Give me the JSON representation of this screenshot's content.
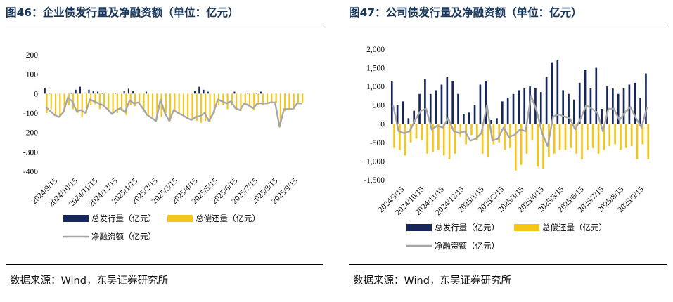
{
  "colors": {
    "issuance": "#17275c",
    "repayment": "#f5c518",
    "net": "#a6a6a6",
    "title": "#17375e"
  },
  "charts": [
    {
      "title": "图46：企业债发行量及净融资额（单位：亿元）",
      "source": "数据来源：Wind，东吴证券研究所",
      "legend": {
        "issuance": "总发行量（亿元）",
        "repayment": "总偿还量（亿元）",
        "net": "净融资额（亿元）"
      }
    },
    {
      "title": "图47：公司债发行量及净融资额（单位：亿元）",
      "source": "数据来源：Wind，东吴证券研究所",
      "legend": {
        "issuance": "总发行量（亿元）",
        "repayment": "总偿还量（亿元）",
        "net": "净融资额（亿元）"
      }
    }
  ],
  "chart_data": [
    {
      "type": "bar",
      "title": "企业债发行量及净融资额（单位：亿元）",
      "ylim": [
        -400,
        200
      ],
      "yticks": [
        200,
        100,
        0,
        -100,
        -200,
        -300,
        -400
      ],
      "ytick_labels": [
        "200",
        "100",
        "0",
        "-100",
        "-200",
        "-300",
        "-400"
      ],
      "xtick_labels": [
        "2024/9/15",
        "2024/10/15",
        "2024/11/15",
        "2024/12/15",
        "2025/1/15",
        "2025/2/15",
        "2025/3/15",
        "2025/4/15",
        "2025/5/15",
        "2025/6/15",
        "2025/7/15",
        "2025/8/15",
        "2025/9/15"
      ],
      "series": [
        {
          "name": "总发行量（亿元）",
          "kind": "bar",
          "values": [
            30,
            5,
            0,
            0,
            0,
            0,
            5,
            20,
            35,
            0,
            20,
            15,
            10,
            5,
            0,
            0,
            5,
            0,
            15,
            25,
            15,
            0,
            0,
            10,
            0,
            0,
            0,
            0,
            0,
            0,
            0,
            0,
            0,
            0,
            15,
            35,
            20,
            10,
            0,
            0,
            0,
            0,
            0,
            10,
            0,
            0,
            5,
            0,
            5,
            10,
            0,
            0,
            0,
            0,
            0,
            0,
            0,
            0,
            0
          ]
        },
        {
          "name": "总偿还量（亿元）",
          "kind": "bar",
          "values": [
            -100,
            -80,
            -110,
            -120,
            -95,
            -60,
            -80,
            -100,
            -120,
            -100,
            -60,
            -55,
            -80,
            -70,
            -85,
            -105,
            -100,
            -90,
            -110,
            -60,
            -65,
            -55,
            -85,
            -110,
            -120,
            -135,
            -120,
            -100,
            -140,
            -95,
            -100,
            -110,
            -120,
            -130,
            -140,
            -150,
            -140,
            -145,
            -100,
            -60,
            -60,
            -80,
            -60,
            -80,
            -90,
            -60,
            -70,
            -85,
            -60,
            -60,
            -55,
            -50,
            -50,
            -170,
            -90,
            -85,
            -80,
            -50,
            -50
          ]
        },
        {
          "name": "净融资额（亿元）",
          "kind": "line",
          "values": [
            -70,
            -90,
            -110,
            -120,
            -95,
            -20,
            -40,
            -90,
            -85,
            -100,
            -30,
            -40,
            -50,
            -60,
            -80,
            -105,
            -85,
            -75,
            -95,
            -35,
            -50,
            -45,
            -75,
            -110,
            -125,
            -140,
            -30,
            -100,
            -140,
            -85,
            -100,
            -110,
            -125,
            -135,
            -120,
            -115,
            -100,
            -140,
            -100,
            -30,
            -40,
            -50,
            -40,
            -75,
            -85,
            -50,
            -60,
            -75,
            -50,
            -50,
            -50,
            -45,
            -45,
            -170,
            -80,
            -80,
            -80,
            -50,
            -50
          ]
        }
      ]
    },
    {
      "type": "bar",
      "title": "公司债发行量及净融资额（单位：亿元）",
      "ylim": [
        -1500,
        2000
      ],
      "yticks": [
        2000,
        1500,
        1000,
        500,
        0,
        -500,
        -1000,
        -1500
      ],
      "ytick_labels": [
        "2,000",
        "1,500",
        "1,000",
        "500",
        "0",
        "-500",
        "-1,000",
        "-1,500"
      ],
      "xtick_labels": [
        "2024/9/15",
        "2024/10/15",
        "2024/11/15",
        "2024/12/15",
        "2025/1/15",
        "2025/2/15",
        "2025/3/15",
        "2025/4/15",
        "2025/5/15",
        "2025/6/15",
        "2025/7/15",
        "2025/8/15",
        "2025/9/15"
      ],
      "series": [
        {
          "name": "总发行量（亿元）",
          "kind": "bar",
          "values": [
            1150,
            500,
            600,
            150,
            350,
            800,
            1200,
            800,
            900,
            1050,
            1250,
            1150,
            800,
            250,
            300,
            500,
            1050,
            1150,
            100,
            150,
            600,
            700,
            800,
            900,
            950,
            1000,
            950,
            850,
            1250,
            1650,
            1700,
            900,
            800,
            650,
            1100,
            1450,
            950,
            1500,
            400,
            1000,
            950,
            800,
            950,
            1050,
            1100,
            700,
            1350
          ]
        },
        {
          "name": "总偿还量（亿元）",
          "kind": "bar",
          "values": [
            -650,
            -700,
            -850,
            -500,
            -400,
            -450,
            -800,
            -750,
            -700,
            -850,
            -950,
            -800,
            -350,
            -550,
            -300,
            -450,
            -800,
            -900,
            -550,
            -500,
            -700,
            -650,
            -1250,
            -1100,
            -800,
            -450,
            -1150,
            -1200,
            -900,
            -800,
            -700,
            -700,
            -650,
            -800,
            -950,
            -700,
            -650,
            -800,
            -700,
            -600,
            -550,
            -700,
            -650,
            -600,
            -950,
            -550,
            -950
          ]
        },
        {
          "name": "净融资额（亿元）",
          "kind": "line",
          "values": [
            500,
            -200,
            -250,
            -200,
            100,
            350,
            400,
            -150,
            -50,
            -100,
            150,
            -200,
            -250,
            -200,
            -450,
            -400,
            -250,
            500,
            -450,
            -400,
            -100,
            -350,
            -300,
            -150,
            -200,
            750,
            350,
            -250,
            -600,
            200,
            250,
            200,
            150,
            -150,
            150,
            500,
            400,
            300,
            -200,
            400,
            400,
            100,
            300,
            450,
            150,
            -100,
            450
          ]
        }
      ]
    }
  ]
}
